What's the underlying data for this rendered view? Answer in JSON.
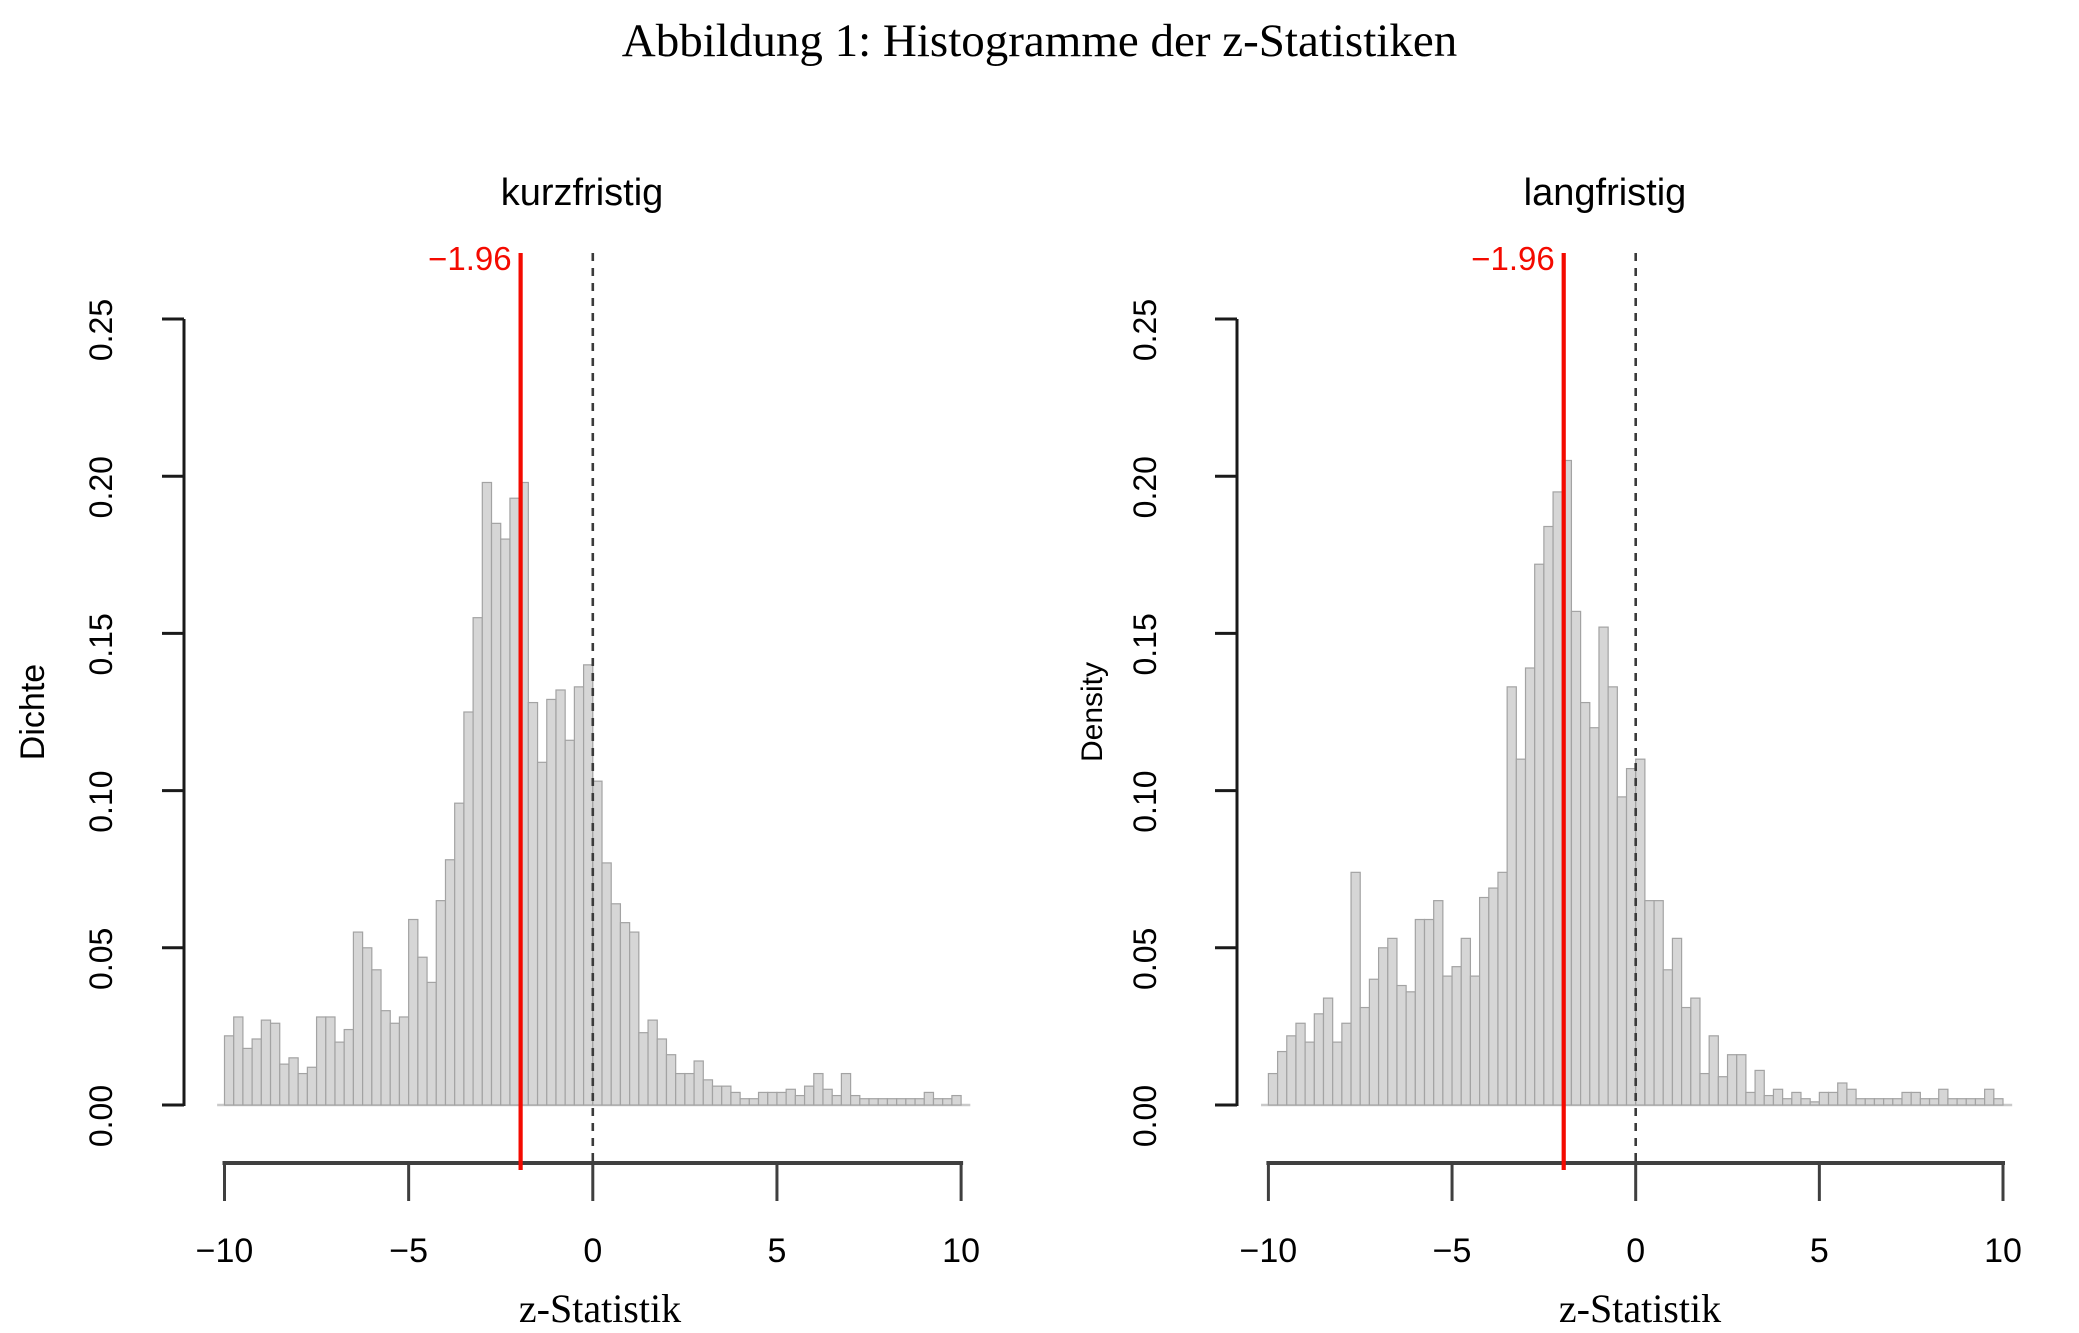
{
  "figure": {
    "title": "Abbildung 1: Histogramme der z-Statistiken"
  },
  "colors": {
    "bar_fill": "#d6d6d6",
    "bar_border": "#a3a3a3",
    "baseline": "#c9c9c9",
    "axis": "#1a1a1a",
    "x_axis": "#3f3f3f",
    "dashed_line": "#3a3a3a",
    "red_line": "#f40a00",
    "text": "#000000"
  },
  "chart_data": [
    {
      "type": "bar",
      "subtype": "histogram",
      "title": "kurzfristig",
      "ylabel": "Dichte",
      "xlabel": "z-Statistik",
      "bin_start": -10,
      "bin_width": 0.25,
      "xlim": [
        -11,
        11
      ],
      "ylim": [
        0,
        0.25
      ],
      "grid": false,
      "x_tick_values": [
        -10,
        -5,
        0,
        5,
        10
      ],
      "x_tick_labels": [
        "−10",
        "−5",
        "0",
        "5",
        "10"
      ],
      "y_tick_values": [
        0,
        0.05,
        0.1,
        0.15,
        0.2,
        0.25
      ],
      "y_tick_labels": [
        "0.00",
        "0.05",
        "0.10",
        "0.15",
        "0.20",
        "0.25"
      ],
      "ref_line_red": {
        "value": -1.96,
        "label": "−1.96"
      },
      "ref_line_dashed": {
        "value": 0
      },
      "values": [
        0.022,
        0.028,
        0.018,
        0.021,
        0.027,
        0.026,
        0.013,
        0.015,
        0.01,
        0.012,
        0.028,
        0.028,
        0.02,
        0.024,
        0.055,
        0.05,
        0.043,
        0.03,
        0.026,
        0.028,
        0.059,
        0.047,
        0.039,
        0.065,
        0.078,
        0.096,
        0.125,
        0.155,
        0.198,
        0.185,
        0.18,
        0.193,
        0.198,
        0.128,
        0.109,
        0.129,
        0.132,
        0.116,
        0.133,
        0.14,
        0.103,
        0.077,
        0.064,
        0.058,
        0.055,
        0.023,
        0.027,
        0.021,
        0.016,
        0.01,
        0.01,
        0.014,
        0.008,
        0.006,
        0.006,
        0.004,
        0.002,
        0.002,
        0.004,
        0.004,
        0.004,
        0.005,
        0.003,
        0.006,
        0.01,
        0.005,
        0.003,
        0.01,
        0.003,
        0.002,
        0.002,
        0.002,
        0.002,
        0.002,
        0.002,
        0.002,
        0.004,
        0.002,
        0.002,
        0.003
      ]
    },
    {
      "type": "bar",
      "subtype": "histogram",
      "title": "langfristig",
      "ylabel": "Density",
      "xlabel": "z-Statistik",
      "bin_start": -10,
      "bin_width": 0.25,
      "xlim": [
        -11,
        11
      ],
      "ylim": [
        0,
        0.25
      ],
      "grid": false,
      "x_tick_values": [
        -10,
        -5,
        0,
        5,
        10
      ],
      "x_tick_labels": [
        "−10",
        "−5",
        "0",
        "5",
        "10"
      ],
      "y_tick_values": [
        0,
        0.05,
        0.1,
        0.15,
        0.2,
        0.25
      ],
      "y_tick_labels": [
        "0.00",
        "0.05",
        "0.10",
        "0.15",
        "0.20",
        "0.25"
      ],
      "ref_line_red": {
        "value": -1.96,
        "label": "−1.96"
      },
      "ref_line_dashed": {
        "value": 0
      },
      "values": [
        0.01,
        0.017,
        0.022,
        0.026,
        0.02,
        0.029,
        0.034,
        0.02,
        0.026,
        0.074,
        0.031,
        0.04,
        0.05,
        0.053,
        0.038,
        0.036,
        0.059,
        0.059,
        0.065,
        0.041,
        0.044,
        0.053,
        0.041,
        0.066,
        0.069,
        0.074,
        0.133,
        0.11,
        0.139,
        0.172,
        0.184,
        0.195,
        0.205,
        0.157,
        0.128,
        0.12,
        0.152,
        0.133,
        0.098,
        0.107,
        0.11,
        0.065,
        0.065,
        0.043,
        0.053,
        0.031,
        0.034,
        0.01,
        0.022,
        0.009,
        0.016,
        0.016,
        0.004,
        0.011,
        0.003,
        0.005,
        0.002,
        0.004,
        0.002,
        0.001,
        0.004,
        0.004,
        0.007,
        0.005,
        0.002,
        0.002,
        0.002,
        0.002,
        0.002,
        0.004,
        0.004,
        0.002,
        0.002,
        0.005,
        0.002,
        0.002,
        0.002,
        0.002,
        0.005,
        0.002
      ]
    }
  ]
}
